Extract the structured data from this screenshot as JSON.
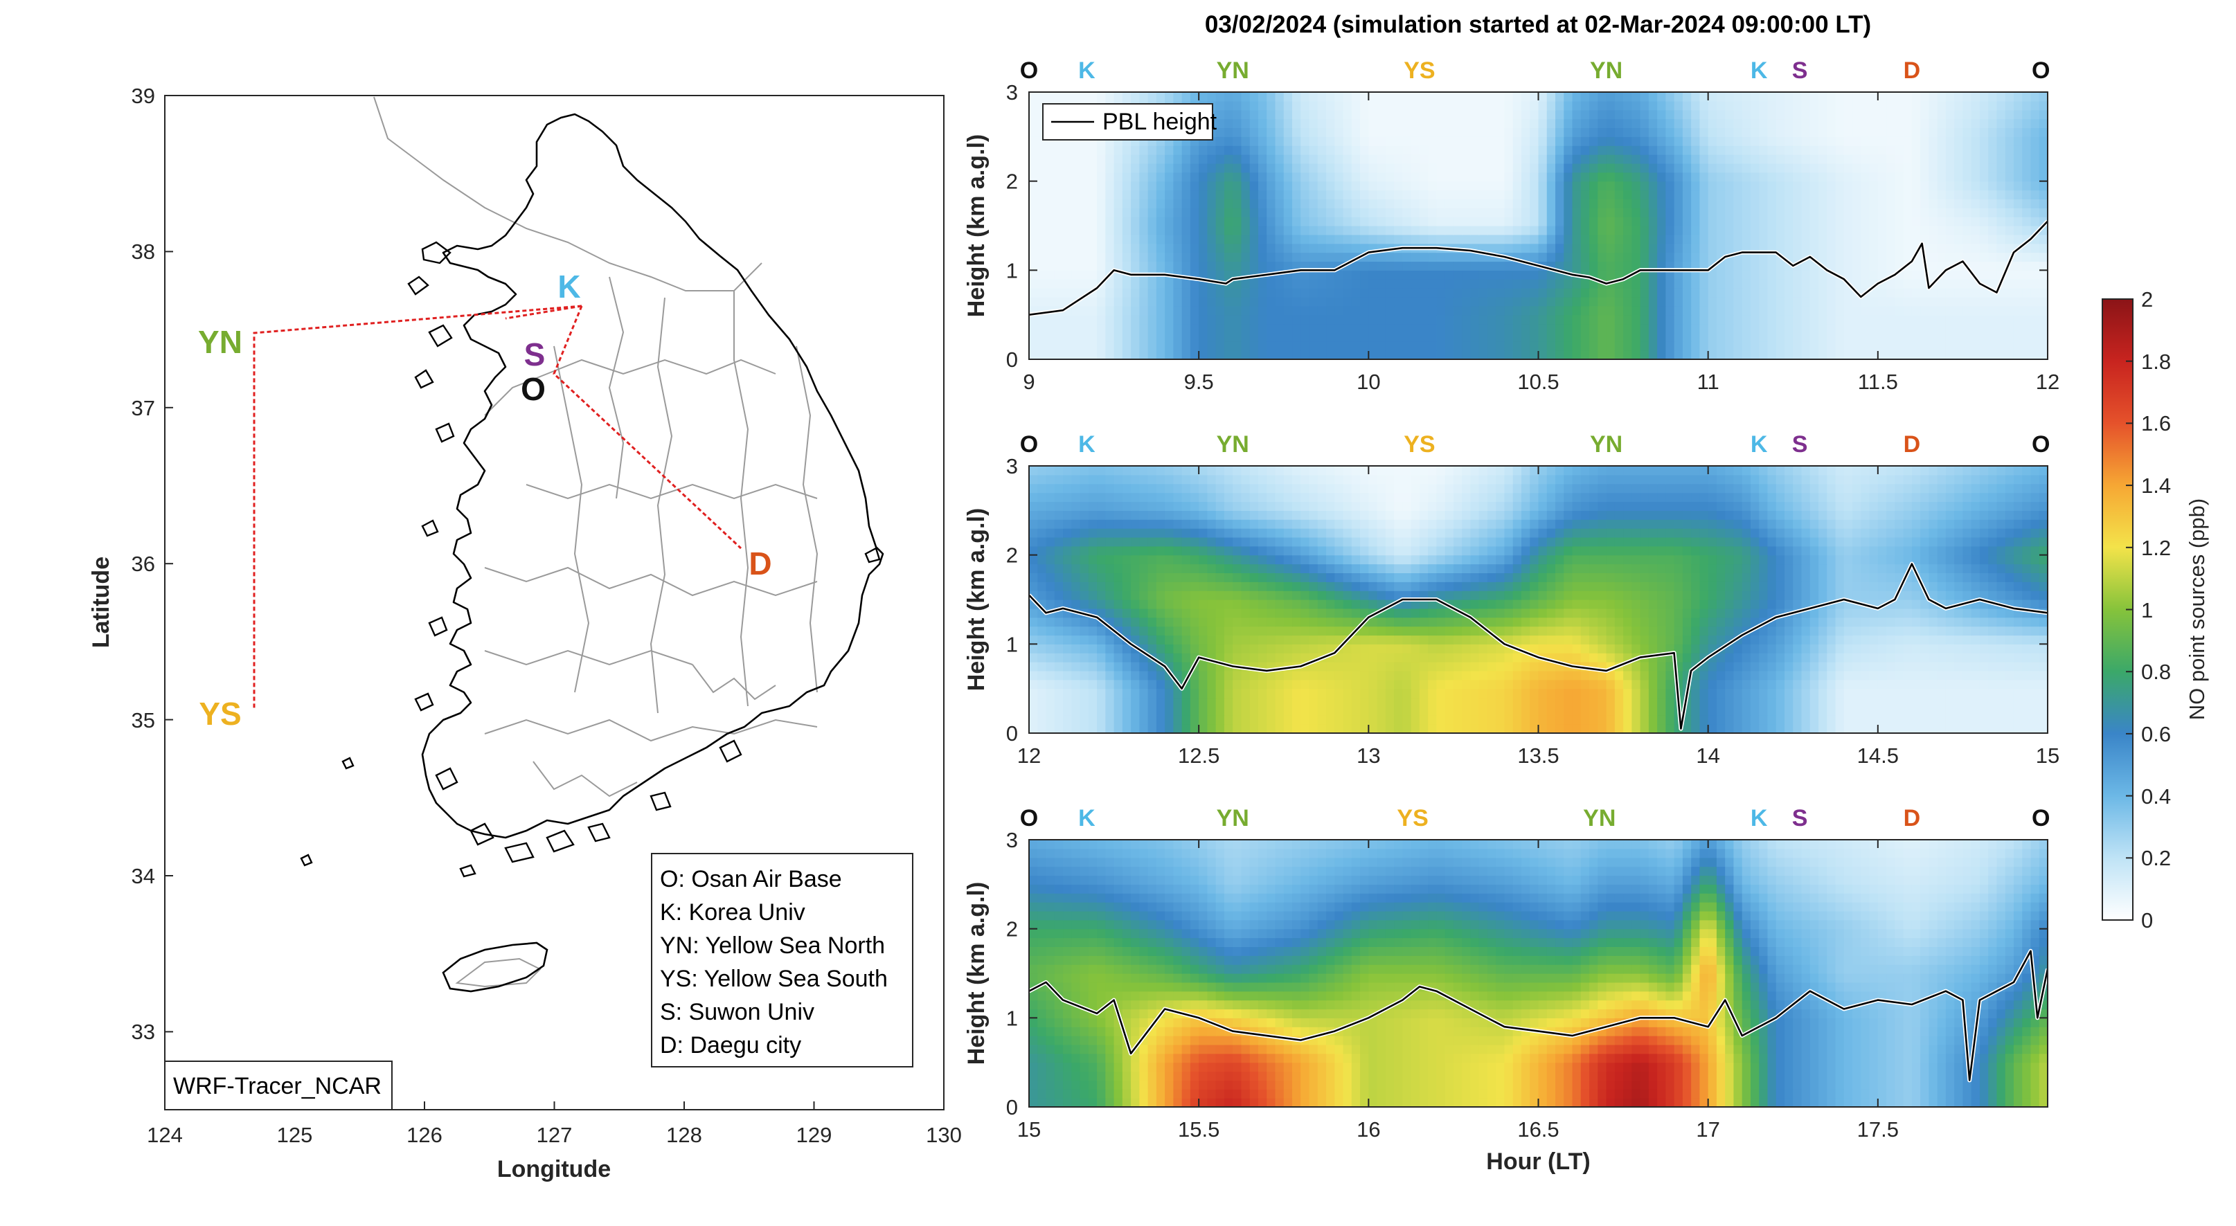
{
  "figure": {
    "title": "03/02/2024 (simulation started at 02-Mar-2024 09:00:00 LT)",
    "colors": {
      "O": "#111111",
      "K": "#4db8e6",
      "YN": "#77ac30",
      "YS": "#edb120",
      "S": "#7e2f8e",
      "D": "#d95319",
      "route_line": "#e02020",
      "coast": "#000000",
      "admin_border": "#9a9a9a",
      "pbl_line": "#000000"
    }
  },
  "map": {
    "xlabel": "Longitude",
    "ylabel": "Latitude",
    "xlim": [
      124,
      130
    ],
    "ylim": [
      32.5,
      39
    ],
    "xticks": [
      "124",
      "125",
      "126",
      "127",
      "128",
      "129",
      "130"
    ],
    "yticks": [
      "39",
      "38",
      "37",
      "36",
      "35",
      "34",
      "33"
    ],
    "model_label": "WRF-Tracer_NCAR",
    "sites": [
      {
        "code": "K",
        "lon": 127.2,
        "lat": 37.65
      },
      {
        "code": "S",
        "lon": 126.9,
        "lat": 37.3
      },
      {
        "code": "O",
        "lon": 126.9,
        "lat": 37.1
      },
      {
        "code": "D",
        "lon": 128.55,
        "lat": 35.9
      },
      {
        "code": "YN",
        "lon": 124.7,
        "lat": 37.45
      },
      {
        "code": "YS",
        "lon": 124.7,
        "lat": 35.05
      }
    ],
    "legend": [
      "O: Osan Air Base",
      "K: Korea Univ",
      "YN: Yellow Sea North",
      "YS: Yellow Sea South",
      "S: Suwon Univ",
      "D: Daegu city"
    ]
  },
  "route_labels": [
    "O",
    "K",
    "YN",
    "YS",
    "YN",
    "K",
    "S",
    "D",
    "O"
  ],
  "colorbar": {
    "label": "NO point sources (ppb)",
    "range": [
      0,
      2
    ],
    "ticks": [
      "0",
      "0.2",
      "0.4",
      "0.6",
      "0.8",
      "1",
      "1.2",
      "1.4",
      "1.6",
      "1.8",
      "2"
    ]
  },
  "chart_data": [
    {
      "type": "heatmap",
      "title": "03/02/2024 (simulation started at 02-Mar-2024 09:00:00 LT)",
      "xlabel": "",
      "ylabel": "Height (km a.g.l)",
      "xlim": [
        9,
        12
      ],
      "ylim": [
        0,
        3
      ],
      "xticks": [
        "9",
        "9.5",
        "10",
        "10.5",
        "11",
        "11.5",
        "12"
      ],
      "yticks": [
        "0",
        "1",
        "2",
        "3"
      ],
      "legend": [
        "PBL height"
      ],
      "route_label_hours": [
        9.0,
        9.17,
        9.6,
        10.15,
        10.7,
        11.15,
        11.27,
        11.6,
        11.98
      ],
      "pbl_height": {
        "x": [
          9.0,
          9.1,
          9.2,
          9.25,
          9.3,
          9.4,
          9.5,
          9.58,
          9.6,
          9.7,
          9.8,
          9.9,
          10.0,
          10.1,
          10.2,
          10.3,
          10.4,
          10.5,
          10.6,
          10.65,
          10.7,
          10.75,
          10.8,
          10.9,
          11.0,
          11.05,
          11.1,
          11.2,
          11.25,
          11.3,
          11.35,
          11.4,
          11.45,
          11.5,
          11.55,
          11.6,
          11.63,
          11.65,
          11.7,
          11.75,
          11.8,
          11.85,
          11.9,
          11.95,
          12.0
        ],
        "y": [
          0.5,
          0.55,
          0.8,
          1.0,
          0.95,
          0.95,
          0.9,
          0.85,
          0.9,
          0.95,
          1.0,
          1.0,
          1.2,
          1.25,
          1.25,
          1.22,
          1.15,
          1.05,
          0.95,
          0.92,
          0.85,
          0.9,
          1.0,
          1.0,
          1.0,
          1.15,
          1.2,
          1.2,
          1.05,
          1.15,
          1.0,
          0.9,
          0.7,
          0.85,
          0.95,
          1.1,
          1.3,
          0.8,
          1.0,
          1.1,
          0.85,
          0.75,
          1.2,
          1.35,
          1.55
        ]
      },
      "no_field": {
        "x": [
          9.0,
          9.2,
          9.4,
          9.5,
          9.6,
          9.7,
          9.8,
          10.0,
          10.2,
          10.4,
          10.5,
          10.6,
          10.7,
          10.8,
          10.9,
          11.0,
          11.2,
          11.4,
          11.6,
          11.8,
          12.0
        ],
        "y": [
          0.0,
          0.5,
          1.0,
          1.5,
          2.0,
          2.5,
          3.0
        ],
        "z": [
          [
            0.1,
            0.1,
            0.4,
            0.6,
            0.65,
            0.6,
            0.6,
            0.6,
            0.6,
            0.65,
            0.7,
            0.8,
            0.9,
            0.8,
            0.5,
            0.3,
            0.2,
            0.1,
            0.1,
            0.1,
            0.1
          ],
          [
            0.1,
            0.1,
            0.4,
            0.6,
            0.65,
            0.6,
            0.6,
            0.6,
            0.6,
            0.65,
            0.7,
            0.8,
            0.9,
            0.8,
            0.5,
            0.3,
            0.2,
            0.1,
            0.1,
            0.1,
            0.1
          ],
          [
            0.05,
            0.05,
            0.4,
            0.6,
            0.7,
            0.6,
            0.55,
            0.6,
            0.6,
            0.6,
            0.6,
            0.7,
            0.85,
            0.8,
            0.5,
            0.3,
            0.2,
            0.1,
            0.05,
            0.05,
            0.05
          ],
          [
            0.05,
            0.05,
            0.45,
            0.6,
            0.8,
            0.55,
            0.35,
            0.2,
            0.1,
            0.1,
            0.2,
            0.7,
            0.9,
            0.8,
            0.55,
            0.3,
            0.2,
            0.1,
            0.05,
            0.1,
            0.25
          ],
          [
            0.05,
            0.05,
            0.4,
            0.6,
            0.75,
            0.5,
            0.3,
            0.1,
            0.05,
            0.05,
            0.2,
            0.7,
            0.85,
            0.75,
            0.55,
            0.3,
            0.2,
            0.1,
            0.05,
            0.2,
            0.4
          ],
          [
            0.05,
            0.05,
            0.3,
            0.5,
            0.55,
            0.4,
            0.2,
            0.05,
            0.05,
            0.05,
            0.15,
            0.5,
            0.6,
            0.55,
            0.4,
            0.2,
            0.1,
            0.05,
            0.05,
            0.2,
            0.4
          ],
          [
            0.05,
            0.05,
            0.25,
            0.4,
            0.45,
            0.35,
            0.15,
            0.05,
            0.05,
            0.05,
            0.1,
            0.4,
            0.5,
            0.45,
            0.3,
            0.15,
            0.1,
            0.05,
            0.05,
            0.15,
            0.3
          ]
        ]
      }
    },
    {
      "type": "heatmap",
      "xlabel": "",
      "ylabel": "Height (km a.g.l)",
      "xlim": [
        12,
        15
      ],
      "ylim": [
        0,
        3
      ],
      "xticks": [
        "12",
        "12.5",
        "13",
        "13.5",
        "14",
        "14.5",
        "15"
      ],
      "yticks": [
        "0",
        "1",
        "2",
        "3"
      ],
      "route_label_hours": [
        12.0,
        12.17,
        12.6,
        13.15,
        13.7,
        14.15,
        14.27,
        14.6,
        14.98
      ],
      "pbl_height": {
        "x": [
          12.0,
          12.05,
          12.1,
          12.2,
          12.3,
          12.4,
          12.45,
          12.5,
          12.6,
          12.7,
          12.8,
          12.9,
          13.0,
          13.1,
          13.2,
          13.3,
          13.4,
          13.5,
          13.6,
          13.7,
          13.8,
          13.9,
          13.92,
          13.95,
          14.0,
          14.1,
          14.2,
          14.3,
          14.4,
          14.5,
          14.55,
          14.6,
          14.65,
          14.7,
          14.8,
          14.9,
          15.0
        ],
        "y": [
          1.55,
          1.35,
          1.4,
          1.3,
          1.0,
          0.75,
          0.5,
          0.85,
          0.75,
          0.7,
          0.75,
          0.9,
          1.3,
          1.5,
          1.5,
          1.3,
          1.0,
          0.85,
          0.75,
          0.7,
          0.85,
          0.9,
          0.05,
          0.7,
          0.85,
          1.1,
          1.3,
          1.4,
          1.5,
          1.4,
          1.5,
          1.9,
          1.5,
          1.4,
          1.5,
          1.4,
          1.35
        ]
      },
      "no_field": {
        "x": [
          12.0,
          12.2,
          12.4,
          12.5,
          12.6,
          12.8,
          13.0,
          13.1,
          13.2,
          13.4,
          13.5,
          13.6,
          13.7,
          13.8,
          13.9,
          14.0,
          14.1,
          14.2,
          14.4,
          14.6,
          15.0
        ],
        "y": [
          0.0,
          0.5,
          1.0,
          1.5,
          2.0,
          2.5,
          3.0
        ],
        "z": [
          [
            0.1,
            0.2,
            0.6,
            0.9,
            1.1,
            1.2,
            1.15,
            1.1,
            1.2,
            1.25,
            1.35,
            1.4,
            1.35,
            1.1,
            0.8,
            0.6,
            0.5,
            0.4,
            0.1,
            0.1,
            0.1
          ],
          [
            0.1,
            0.2,
            0.6,
            0.9,
            1.1,
            1.2,
            1.15,
            1.1,
            1.2,
            1.25,
            1.35,
            1.4,
            1.35,
            1.1,
            0.8,
            0.6,
            0.5,
            0.4,
            0.1,
            0.1,
            0.1
          ],
          [
            0.3,
            0.4,
            0.8,
            0.95,
            1.05,
            1.1,
            1.15,
            1.15,
            1.1,
            1.15,
            1.2,
            1.2,
            1.1,
            1.0,
            0.9,
            0.7,
            0.6,
            0.5,
            0.2,
            0.15,
            0.2
          ],
          [
            0.5,
            0.7,
            0.95,
            1.0,
            1.0,
            0.9,
            0.7,
            0.6,
            0.7,
            0.8,
            0.9,
            1.0,
            1.0,
            0.95,
            0.9,
            0.8,
            0.7,
            0.6,
            0.3,
            0.3,
            0.6
          ],
          [
            0.6,
            0.8,
            0.85,
            0.8,
            0.7,
            0.5,
            0.25,
            0.15,
            0.25,
            0.45,
            0.7,
            0.85,
            0.85,
            0.85,
            0.85,
            0.8,
            0.75,
            0.6,
            0.3,
            0.4,
            0.8
          ],
          [
            0.45,
            0.5,
            0.45,
            0.4,
            0.3,
            0.2,
            0.1,
            0.05,
            0.1,
            0.25,
            0.4,
            0.55,
            0.6,
            0.6,
            0.6,
            0.6,
            0.55,
            0.4,
            0.2,
            0.3,
            0.55
          ],
          [
            0.3,
            0.35,
            0.3,
            0.25,
            0.2,
            0.1,
            0.05,
            0.05,
            0.05,
            0.15,
            0.3,
            0.4,
            0.45,
            0.45,
            0.45,
            0.45,
            0.4,
            0.3,
            0.15,
            0.2,
            0.4
          ]
        ]
      }
    },
    {
      "type": "heatmap",
      "xlabel": "Hour (LT)",
      "ylabel": "Height (km a.g.l)",
      "xlim": [
        15,
        18
      ],
      "ylim": [
        0,
        3
      ],
      "xticks": [
        "15",
        "15.5",
        "16",
        "16.5",
        "17",
        "17.5"
      ],
      "yticks": [
        "0",
        "1",
        "2",
        "3"
      ],
      "route_label_hours": [
        15.0,
        15.17,
        15.6,
        16.13,
        16.68,
        17.15,
        17.27,
        17.6,
        17.98
      ],
      "pbl_height": {
        "x": [
          15.0,
          15.05,
          15.1,
          15.2,
          15.25,
          15.3,
          15.4,
          15.5,
          15.6,
          15.7,
          15.8,
          15.9,
          16.0,
          16.1,
          16.15,
          16.2,
          16.3,
          16.4,
          16.5,
          16.6,
          16.7,
          16.8,
          16.9,
          17.0,
          17.05,
          17.1,
          17.2,
          17.3,
          17.4,
          17.5,
          17.6,
          17.7,
          17.75,
          17.77,
          17.8,
          17.85,
          17.9,
          17.95,
          17.97,
          18.0
        ],
        "y": [
          1.3,
          1.4,
          1.2,
          1.05,
          1.2,
          0.6,
          1.1,
          1.0,
          0.85,
          0.8,
          0.75,
          0.85,
          1.0,
          1.2,
          1.35,
          1.3,
          1.1,
          0.9,
          0.85,
          0.8,
          0.9,
          1.0,
          1.0,
          0.9,
          1.2,
          0.8,
          1.0,
          1.3,
          1.1,
          1.2,
          1.15,
          1.3,
          1.2,
          0.3,
          1.2,
          1.3,
          1.4,
          1.75,
          1.0,
          1.55
        ]
      },
      "no_field": {
        "x": [
          15.0,
          15.2,
          15.4,
          15.5,
          15.6,
          15.8,
          16.0,
          16.2,
          16.4,
          16.6,
          16.7,
          16.8,
          16.9,
          17.0,
          17.1,
          17.2,
          17.4,
          17.6,
          17.8,
          17.9,
          18.0
        ],
        "y": [
          0.0,
          0.5,
          1.0,
          1.5,
          2.0,
          2.5,
          3.0
        ],
        "z": [
          [
            0.7,
            0.8,
            1.4,
            1.7,
            1.8,
            1.4,
            1.1,
            1.15,
            1.2,
            1.5,
            1.8,
            1.9,
            1.7,
            1.4,
            1.0,
            0.6,
            0.4,
            0.3,
            0.6,
            0.9,
            1.1
          ],
          [
            0.7,
            0.85,
            1.4,
            1.6,
            1.65,
            1.4,
            1.1,
            1.15,
            1.2,
            1.5,
            1.75,
            1.85,
            1.7,
            1.4,
            1.0,
            0.6,
            0.4,
            0.3,
            0.6,
            0.9,
            1.1
          ],
          [
            0.8,
            1.0,
            1.2,
            1.3,
            1.25,
            1.1,
            1.1,
            1.15,
            1.1,
            1.2,
            1.3,
            1.4,
            1.3,
            1.3,
            0.9,
            0.6,
            0.4,
            0.3,
            0.5,
            0.7,
            0.9
          ],
          [
            0.9,
            1.0,
            0.9,
            0.8,
            0.7,
            0.8,
            1.0,
            1.0,
            0.9,
            0.9,
            1.0,
            1.0,
            0.9,
            1.4,
            0.8,
            0.5,
            0.3,
            0.3,
            0.4,
            0.5,
            0.7
          ],
          [
            0.8,
            0.8,
            0.65,
            0.55,
            0.45,
            0.55,
            0.75,
            0.8,
            0.7,
            0.6,
            0.7,
            0.7,
            0.65,
            1.2,
            0.6,
            0.4,
            0.3,
            0.2,
            0.3,
            0.4,
            0.6
          ],
          [
            0.6,
            0.55,
            0.45,
            0.4,
            0.3,
            0.4,
            0.5,
            0.55,
            0.5,
            0.4,
            0.5,
            0.5,
            0.45,
            0.8,
            0.4,
            0.3,
            0.2,
            0.15,
            0.2,
            0.3,
            0.4
          ],
          [
            0.45,
            0.4,
            0.35,
            0.3,
            0.25,
            0.3,
            0.35,
            0.4,
            0.35,
            0.3,
            0.35,
            0.35,
            0.3,
            0.5,
            0.3,
            0.2,
            0.15,
            0.1,
            0.15,
            0.2,
            0.3
          ]
        ]
      }
    }
  ]
}
